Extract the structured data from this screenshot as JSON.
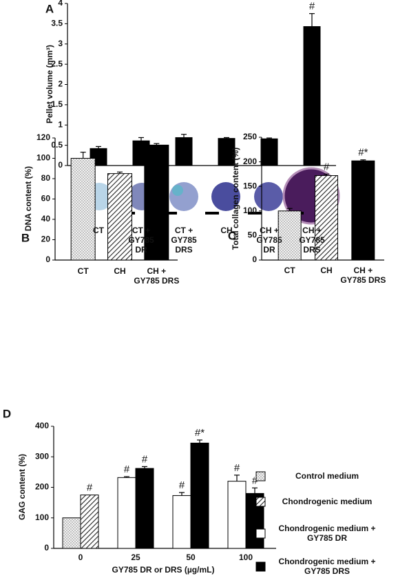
{
  "chart_data": [
    {
      "panel_label": "A",
      "type": "bar",
      "y_label": "Pellet volume (mm³)",
      "categories": [
        "CT",
        "CT +\nGY785\nDR",
        "CT +\nGY785\nDRS",
        "CH",
        "CH +\nGY785\nDR",
        "CH +\nGY785\nDRS"
      ],
      "values": [
        0.42,
        0.61,
        0.69,
        0.67,
        0.66,
        3.43
      ],
      "errors": [
        0.05,
        0.08,
        0.08,
        0.02,
        0.02,
        0.32
      ],
      "annotations": [
        null,
        null,
        null,
        null,
        null,
        "#"
      ],
      "color": "#000000",
      "ylim": [
        0,
        4
      ],
      "yticks": [
        0,
        0.5,
        1,
        1.5,
        2,
        2.5,
        3,
        3.5,
        4
      ]
    },
    {
      "panel_label": "B",
      "type": "bar",
      "y_label": "DNA content (%)",
      "categories": [
        "CT",
        "CH",
        "CH +\nGY785 DRS"
      ],
      "values": [
        100,
        85,
        113
      ],
      "errors": [
        6,
        1.5,
        1.5
      ],
      "patterns": [
        "dots",
        "hatch",
        "solid"
      ],
      "ylim": [
        0,
        120
      ],
      "yticks": [
        0,
        20,
        40,
        60,
        80,
        100,
        120
      ]
    },
    {
      "panel_label": "C",
      "type": "bar",
      "y_label": "Total collagen content (%)",
      "categories": [
        "CT",
        "CH",
        "CH +\nGY785 DRS"
      ],
      "values": [
        100,
        172,
        202
      ],
      "errors": [
        5,
        3,
        2
      ],
      "annotations": [
        null,
        "#",
        "#*"
      ],
      "patterns": [
        "dots",
        "hatch",
        "solid"
      ],
      "ylim": [
        0,
        250
      ],
      "yticks": [
        0,
        50,
        100,
        150,
        200,
        250
      ]
    },
    {
      "panel_label": "D",
      "type": "grouped_bar",
      "y_label": "GAG content (%)",
      "x_label": "GY785 DR or DRS (µg/mL)",
      "categories": [
        "0",
        "25",
        "50",
        "100"
      ],
      "legend": "right",
      "series": [
        {
          "name": "Control medium",
          "pattern": "dots",
          "values": [
            100,
            null,
            null,
            null
          ],
          "errors": [
            null,
            null,
            null,
            null
          ],
          "annotations": [
            null,
            null,
            null,
            null
          ]
        },
        {
          "name": "Chondrogenic medium",
          "pattern": "hatch",
          "values": [
            175,
            null,
            null,
            null
          ],
          "errors": [
            null,
            null,
            null,
            null
          ],
          "annotations": [
            "#",
            null,
            null,
            null
          ]
        },
        {
          "name": "Chondrogenic medium +\nGY785 DR",
          "pattern": "white",
          "values": [
            null,
            232,
            173,
            220
          ],
          "errors": [
            null,
            3,
            10,
            20
          ],
          "annotations": [
            null,
            "#",
            "#",
            "#"
          ]
        },
        {
          "name": "Chondrogenic medium +\nGY785 DRS",
          "pattern": "solid",
          "values": [
            null,
            262,
            345,
            180
          ],
          "errors": [
            null,
            6,
            10,
            18
          ],
          "annotations": [
            null,
            "#",
            "#*",
            "#"
          ]
        }
      ],
      "ylim": [
        0,
        400
      ],
      "yticks": [
        0,
        100,
        200,
        300,
        400
      ]
    }
  ]
}
